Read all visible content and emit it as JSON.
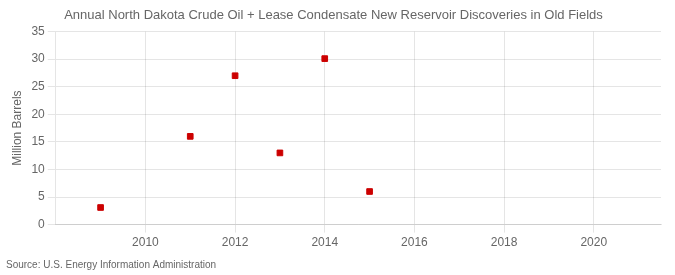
{
  "chart_data": {
    "type": "scatter",
    "title": "Annual North Dakota Crude Oil + Lease Condensate New Reservoir Discoveries in Old Fields",
    "ylabel": "Million Barrels",
    "annotation": "Source: U.S. Energy Information Administration",
    "x": [
      2009,
      2011,
      2012,
      2013,
      2014,
      2015
    ],
    "values": [
      3.1,
      16.0,
      27.0,
      13.0,
      30.1,
      6.0
    ],
    "color": "#cc0000",
    "marker": "square",
    "xlim": [
      2008.0,
      2021.5
    ],
    "ylim": [
      0,
      35
    ],
    "xticks": [
      2010,
      2012,
      2014,
      2016,
      2018,
      2020
    ],
    "yticks": [
      0,
      5,
      10,
      15,
      20,
      25,
      30,
      35
    ],
    "grid": true
  }
}
